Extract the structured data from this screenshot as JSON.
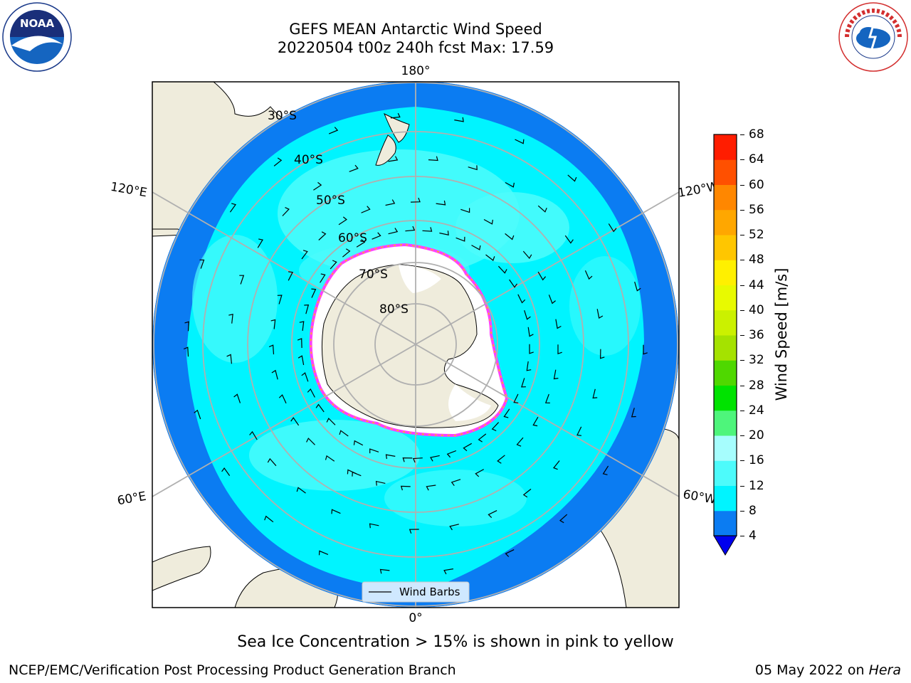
{
  "title": {
    "line1": "GEFS MEAN Antarctic Wind Speed",
    "line2": "20220504 t00z 240h fcst   Max: 17.59"
  },
  "logos": {
    "left": {
      "name": "noaa-logo",
      "text": "NOAA"
    },
    "right": {
      "name": "nws-logo",
      "text": "NATIONAL WEATHER SERVICE"
    }
  },
  "map": {
    "projection": "south-polar-stereographic",
    "longitude_labels": {
      "top": "180°",
      "bottom": "0°",
      "upper_left": "120°E",
      "upper_right": "120°W",
      "lower_left": "60°E",
      "lower_right": "60°W"
    },
    "latitude_labels": [
      "30°S",
      "40°S",
      "50°S",
      "60°S",
      "70°S",
      "80°S"
    ],
    "legend": {
      "label": "Wind Barbs"
    }
  },
  "colorbar": {
    "label": "Wind Speed [m/s]",
    "ticks": [
      4,
      8,
      12,
      16,
      20,
      24,
      28,
      32,
      36,
      40,
      44,
      48,
      52,
      56,
      60,
      64,
      68
    ],
    "colors": [
      "#0b7cf2",
      "#00f4ff",
      "#4dfbfb",
      "#a6fdfd",
      "#4ef57b",
      "#00e300",
      "#4fd800",
      "#a5e200",
      "#cbf100",
      "#e8fa00",
      "#fff000",
      "#ffc600",
      "#ffa700",
      "#ff8700",
      "#ff5000",
      "#ff1d00"
    ],
    "extend_below_color": "#0000ee"
  },
  "caption": "Sea Ice Concentration > 15% is shown in pink to yellow",
  "footer": {
    "left": "NCEP/EMC/Verification Post Processing Product Generation Branch",
    "right_date": "05 May 2022 on ",
    "right_host": "Hera"
  },
  "colors": {
    "ocean_dark": "#0b7cf2",
    "ocean_mid": "#00f4ff",
    "ocean_light": "#4dfbfb",
    "land": "#efecdc",
    "ice_edge": "#ff40ff",
    "grid": "#b0b0b0"
  }
}
